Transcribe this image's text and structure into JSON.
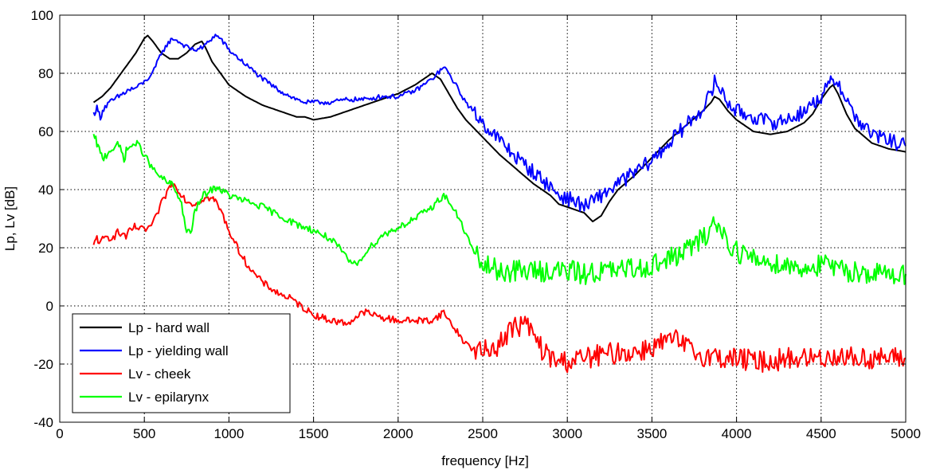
{
  "chart_data": {
    "type": "line",
    "title": "",
    "xlabel": "frequency [Hz]",
    "ylabel": "Lp, Lv [dB]",
    "xlim": [
      0,
      5000
    ],
    "ylim": [
      -40,
      100
    ],
    "grid": true,
    "legend_position": "bottom-left",
    "x_ticks": [
      0,
      500,
      1000,
      1500,
      2000,
      2500,
      3000,
      3500,
      4000,
      4500,
      5000
    ],
    "y_ticks": [
      -40,
      -20,
      0,
      20,
      40,
      60,
      80,
      100
    ],
    "x_tick_labels": [
      "0",
      "500",
      "1000",
      "1500",
      "2000",
      "2500",
      "3000",
      "3500",
      "4000",
      "4500",
      "5000"
    ],
    "y_tick_labels": [
      "-40",
      "-20",
      "0",
      "20",
      "40",
      "60",
      "80",
      "100"
    ],
    "series": [
      {
        "name": "Lp - hard wall",
        "color": "#000000",
        "noise": 0,
        "x": [
          200,
          250,
          300,
          350,
          400,
          450,
          500,
          520,
          550,
          600,
          650,
          700,
          750,
          800,
          840,
          860,
          900,
          950,
          1000,
          1100,
          1200,
          1300,
          1400,
          1450,
          1500,
          1600,
          1700,
          1800,
          1900,
          2000,
          2100,
          2150,
          2200,
          2250,
          2300,
          2350,
          2400,
          2500,
          2600,
          2700,
          2800,
          2900,
          2950,
          3000,
          3050,
          3100,
          3150,
          3200,
          3250,
          3300,
          3400,
          3500,
          3600,
          3700,
          3800,
          3850,
          3870,
          3900,
          3950,
          4000,
          4100,
          4200,
          4300,
          4400,
          4450,
          4500,
          4550,
          4570,
          4600,
          4650,
          4700,
          4800,
          4900,
          5000
        ],
        "y": [
          70,
          72,
          75,
          79,
          83,
          87,
          92,
          93,
          91,
          87,
          85,
          85,
          87,
          90,
          91,
          89,
          84,
          80,
          76,
          72,
          69,
          67,
          65,
          65,
          64,
          65,
          67,
          69,
          71,
          73,
          76,
          78,
          80,
          78,
          73,
          68,
          64,
          58,
          52,
          47,
          42,
          38,
          35,
          34,
          33,
          32,
          29,
          31,
          36,
          40,
          45,
          51,
          57,
          62,
          67,
          70,
          72,
          71,
          67,
          64,
          60,
          59,
          60,
          63,
          66,
          71,
          75,
          76,
          73,
          66,
          61,
          56,
          54,
          53
        ]
      },
      {
        "name": "Lp - yielding wall",
        "color": "#0000ff",
        "noise": 0.8,
        "x": [
          200,
          220,
          240,
          260,
          300,
          350,
          400,
          450,
          500,
          550,
          600,
          650,
          670,
          700,
          750,
          800,
          850,
          880,
          920,
          950,
          1000,
          1100,
          1200,
          1300,
          1400,
          1450,
          1500,
          1600,
          1700,
          1800,
          1900,
          2000,
          2100,
          2150,
          2200,
          2250,
          2270,
          2300,
          2350,
          2400,
          2500,
          2600,
          2700,
          2800,
          2900,
          2950,
          3000,
          3050,
          3100,
          3150,
          3200,
          3300,
          3400,
          3500,
          3600,
          3700,
          3800,
          3850,
          3870,
          3900,
          3950,
          4000,
          4100,
          4200,
          4300,
          4400,
          4500,
          4550,
          4570,
          4600,
          4650,
          4700,
          4800,
          4900,
          5000
        ],
        "y": [
          66,
          68,
          65,
          68,
          70,
          72,
          74,
          75,
          77,
          80,
          87,
          91,
          92,
          91,
          89,
          88,
          89,
          91,
          93,
          92,
          88,
          83,
          78,
          74,
          71,
          70,
          70,
          70,
          71,
          71,
          72,
          72,
          74,
          76,
          78,
          81,
          82,
          80,
          75,
          70,
          63,
          57,
          51,
          46,
          41,
          38,
          37,
          36,
          34,
          36,
          38,
          42,
          46,
          50,
          56,
          62,
          68,
          73,
          77,
          75,
          70,
          67,
          65,
          63,
          64,
          67,
          72,
          76,
          78,
          77,
          71,
          65,
          59,
          57,
          55
        ]
      },
      {
        "name": "Lv - cheek",
        "color": "#ff0000",
        "noise": 1.2,
        "x": [
          200,
          220,
          240,
          260,
          300,
          350,
          400,
          420,
          450,
          500,
          550,
          600,
          650,
          670,
          700,
          750,
          800,
          850,
          900,
          920,
          950,
          1000,
          1050,
          1100,
          1150,
          1200,
          1300,
          1350,
          1400,
          1500,
          1600,
          1700,
          1750,
          1800,
          1850,
          1900,
          2000,
          2100,
          2200,
          2250,
          2270,
          2300,
          2350,
          2400,
          2450,
          2500,
          2600,
          2650,
          2700,
          2750,
          2800,
          2850,
          2900,
          2950,
          3000,
          3100,
          3200,
          3300,
          3400,
          3500,
          3600,
          3650,
          3700,
          3750,
          3800,
          3850,
          3900,
          4000,
          4100,
          4200,
          4300,
          4400,
          4500,
          4600,
          4700,
          4800,
          4900,
          5000
        ],
        "y": [
          20,
          24,
          21,
          23,
          24,
          25,
          24,
          26,
          27,
          26,
          28,
          35,
          41,
          42,
          40,
          36,
          35,
          37,
          37,
          36,
          33,
          26,
          20,
          15,
          11,
          8,
          4,
          3,
          1,
          -3,
          -5,
          -6,
          -4,
          -2,
          -3,
          -4,
          -5,
          -5,
          -5,
          -3,
          -2,
          -5,
          -9,
          -13,
          -15,
          -16,
          -13,
          -9,
          -7,
          -6,
          -10,
          -15,
          -18,
          -19,
          -19,
          -18,
          -17,
          -16,
          -16,
          -14,
          -12,
          -12,
          -14,
          -16,
          -17,
          -17,
          -18,
          -18,
          -19,
          -19,
          -18,
          -18,
          -18,
          -17,
          -18,
          -18,
          -18,
          -18
        ]
      },
      {
        "name": "Lv - epilarynx",
        "color": "#00ff00",
        "noise": 1.2,
        "x": [
          200,
          220,
          240,
          260,
          300,
          350,
          380,
          400,
          450,
          470,
          500,
          550,
          600,
          650,
          660,
          700,
          720,
          750,
          780,
          800,
          850,
          900,
          930,
          950,
          1000,
          1100,
          1200,
          1300,
          1400,
          1500,
          1600,
          1650,
          1700,
          1750,
          1800,
          1850,
          1900,
          2000,
          2100,
          2200,
          2250,
          2270,
          2300,
          2350,
          2400,
          2450,
          2500,
          2600,
          2700,
          2800,
          2900,
          3000,
          3100,
          3200,
          3300,
          3400,
          3500,
          3600,
          3700,
          3750,
          3800,
          3850,
          3870,
          3900,
          3950,
          4000,
          4100,
          4200,
          4300,
          4400,
          4500,
          4550,
          4600,
          4700,
          4800,
          4900,
          5000
        ],
        "y": [
          58,
          56,
          52,
          51,
          54,
          55,
          51,
          54,
          56,
          55,
          52,
          47,
          44,
          42,
          42,
          38,
          35,
          25,
          26,
          33,
          38,
          40,
          41,
          40,
          38,
          36,
          34,
          31,
          28,
          26,
          23,
          20,
          16,
          14,
          18,
          21,
          24,
          27,
          30,
          34,
          37,
          38,
          36,
          31,
          25,
          18,
          14,
          12,
          12,
          12,
          12,
          12,
          11,
          12,
          12,
          13,
          14,
          16,
          19,
          21,
          23,
          27,
          29,
          27,
          22,
          19,
          16,
          15,
          14,
          13,
          14,
          14,
          12,
          12,
          11,
          11,
          11
        ]
      }
    ]
  }
}
